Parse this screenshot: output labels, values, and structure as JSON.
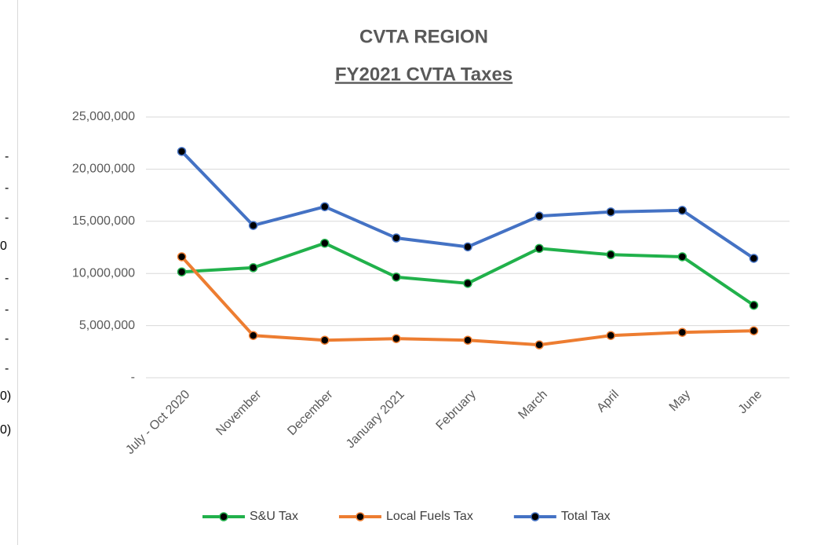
{
  "sheet_fragments": [
    "-",
    "-",
    "-",
    "0",
    "-",
    "-",
    "-",
    "-",
    "0)",
    "0)"
  ],
  "chart_data": {
    "type": "line",
    "title": "CVTA REGION",
    "subtitle": "FY2021 CVTA Taxes",
    "categories": [
      "July - Oct 2020",
      "November",
      "December",
      "January 2021",
      "February",
      "March",
      "April",
      "May",
      "June"
    ],
    "series": [
      {
        "name": "S&U Tax",
        "color": "#21b14b",
        "values": [
          10150000,
          10550000,
          12900000,
          9650000,
          9050000,
          12400000,
          11800000,
          11600000,
          6950000
        ]
      },
      {
        "name": "Local Fuels Tax",
        "color": "#ed7d31",
        "values": [
          11600000,
          4050000,
          3600000,
          3750000,
          3600000,
          3150000,
          4050000,
          4350000,
          4500000
        ]
      },
      {
        "name": "Total Tax",
        "color": "#4472c4",
        "values": [
          21700000,
          14600000,
          16400000,
          13400000,
          12550000,
          15500000,
          15900000,
          16050000,
          11450000
        ]
      }
    ],
    "ylim": [
      0,
      25000000
    ],
    "yticks": [
      {
        "value": 0,
        "label": "-"
      },
      {
        "value": 5000000,
        "label": "5,000,000"
      },
      {
        "value": 10000000,
        "label": "10,000,000"
      },
      {
        "value": 15000000,
        "label": "15,000,000"
      },
      {
        "value": 20000000,
        "label": "20,000,000"
      },
      {
        "value": 25000000,
        "label": "25,000,000"
      }
    ],
    "grid": true,
    "marker_color": "#000000",
    "legend": "bottom"
  }
}
